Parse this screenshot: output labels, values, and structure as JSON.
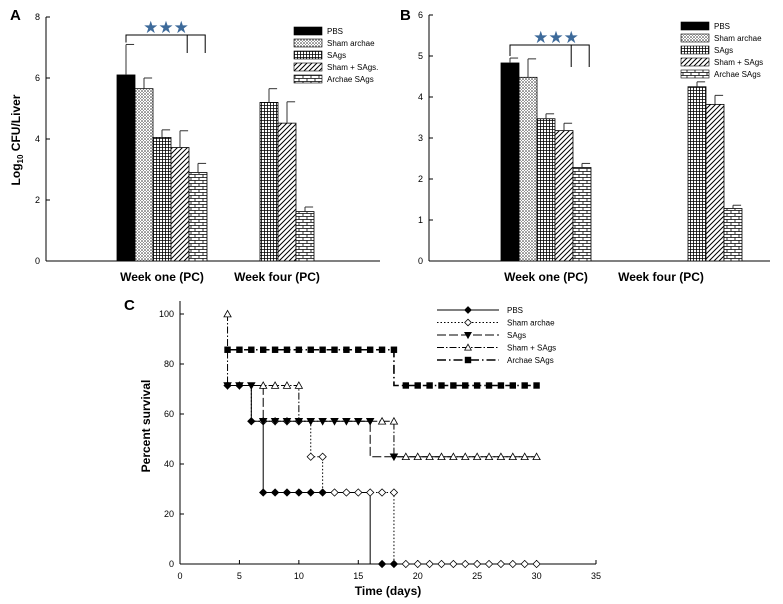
{
  "panels": {
    "a": "A",
    "b": "B",
    "c": "C"
  },
  "bar_y_axis_label": {
    "main": "Log",
    "sub": "10",
    "rest": " CFU/Liver"
  },
  "chart_data": [
    {
      "id": "A",
      "type": "bar",
      "categories": [
        "Week one (PC)",
        "Week four (PC)"
      ],
      "ylim": [
        0,
        8
      ],
      "yticks": [
        0,
        2,
        4,
        6,
        8
      ],
      "legend_position": "top-right",
      "legend_labels": [
        "PBS",
        "Sham archae",
        "SAgs",
        "Sham + SAgs.",
        "Archae SAgs"
      ],
      "annotation": "★★★",
      "series": [
        {
          "name": "PBS",
          "pattern": "solid",
          "values": [
            6.1,
            null
          ],
          "errors": [
            1.0,
            null
          ]
        },
        {
          "name": "Sham archae",
          "pattern": "dots",
          "values": [
            5.65,
            null
          ],
          "errors": [
            0.35,
            null
          ]
        },
        {
          "name": "SAgs",
          "pattern": "grid",
          "values": [
            4.05,
            5.2
          ],
          "errors": [
            0.25,
            0.45
          ]
        },
        {
          "name": "Sham + SAgs.",
          "pattern": "diag",
          "values": [
            3.72,
            4.52
          ],
          "errors": [
            0.55,
            0.7
          ]
        },
        {
          "name": "Archae SAgs",
          "pattern": "brick",
          "values": [
            2.9,
            1.62
          ],
          "errors": [
            0.3,
            0.15
          ]
        }
      ]
    },
    {
      "id": "B",
      "type": "bar",
      "categories": [
        "Week one (PC)",
        "Week four (PC)"
      ],
      "ylim": [
        0,
        6
      ],
      "yticks": [
        0,
        1,
        2,
        3,
        4,
        5,
        6
      ],
      "legend_position": "top-right",
      "legend_labels": [
        "PBS",
        "Sham archae",
        "SAgs",
        "Sham + SAgs",
        "Archae SAgs"
      ],
      "annotation": "★★★",
      "series": [
        {
          "name": "PBS",
          "pattern": "solid",
          "values": [
            4.83,
            null
          ],
          "errors": [
            0.12,
            null
          ]
        },
        {
          "name": "Sham archae",
          "pattern": "dots",
          "values": [
            4.48,
            null
          ],
          "errors": [
            0.45,
            null
          ]
        },
        {
          "name": "SAgs",
          "pattern": "grid",
          "values": [
            3.47,
            4.25
          ],
          "errors": [
            0.12,
            0.12
          ]
        },
        {
          "name": "Sham + SAgs",
          "pattern": "diag",
          "values": [
            3.18,
            3.82
          ],
          "errors": [
            0.18,
            0.22
          ]
        },
        {
          "name": "Archae SAgs",
          "pattern": "brick",
          "values": [
            2.28,
            1.28
          ],
          "errors": [
            0.1,
            0.08
          ]
        }
      ]
    },
    {
      "id": "C",
      "type": "line",
      "title": "",
      "xlabel": "Time (days)",
      "ylabel": "Percent survival",
      "xlim": [
        0,
        35
      ],
      "ylim": [
        0,
        100
      ],
      "xticks": [
        0,
        5,
        10,
        15,
        20,
        25,
        30,
        35
      ],
      "yticks": [
        0,
        20,
        40,
        60,
        80,
        100
      ],
      "legend_position": "top-right",
      "series": [
        {
          "name": "PBS",
          "marker": "diamond-filled",
          "dash": "solid",
          "steps": [
            [
              4,
              71.4
            ],
            [
              6,
              57.1
            ],
            [
              7,
              28.6
            ],
            [
              16,
              0
            ],
            [
              30,
              0
            ]
          ],
          "points": [
            [
              4,
              71.4
            ],
            [
              5,
              71.4
            ],
            [
              6,
              57.1
            ],
            [
              7,
              28.6
            ],
            [
              8,
              28.6
            ],
            [
              9,
              28.6
            ],
            [
              10,
              28.6
            ],
            [
              11,
              28.6
            ],
            [
              12,
              28.6
            ],
            [
              17,
              0
            ],
            [
              18,
              0
            ]
          ]
        },
        {
          "name": "Sham archae",
          "marker": "diamond-open",
          "dash": "dotted",
          "steps": [
            [
              4,
              71.4
            ],
            [
              6,
              57.1
            ],
            [
              11,
              42.9
            ],
            [
              12,
              28.6
            ],
            [
              18,
              0
            ],
            [
              30,
              0
            ]
          ],
          "points": [
            [
              7,
              57.1
            ],
            [
              8,
              57.1
            ],
            [
              9,
              57.1
            ],
            [
              10,
              57.1
            ],
            [
              11,
              42.9
            ],
            [
              12,
              42.9
            ],
            [
              13,
              28.6
            ],
            [
              14,
              28.6
            ],
            [
              15,
              28.6
            ],
            [
              16,
              28.6
            ],
            [
              17,
              28.6
            ],
            [
              18,
              28.6
            ],
            [
              19,
              0
            ],
            [
              20,
              0
            ],
            [
              21,
              0
            ],
            [
              22,
              0
            ],
            [
              23,
              0
            ],
            [
              24,
              0
            ],
            [
              25,
              0
            ],
            [
              26,
              0
            ],
            [
              27,
              0
            ],
            [
              28,
              0
            ],
            [
              29,
              0
            ],
            [
              30,
              0
            ]
          ]
        },
        {
          "name": "SAgs",
          "marker": "triangle-down-filled",
          "dash": "longdash",
          "steps": [
            [
              4,
              71.4
            ],
            [
              7,
              57.1
            ],
            [
              16,
              42.9
            ],
            [
              30,
              42.9
            ]
          ],
          "points": [
            [
              4,
              71.4
            ],
            [
              5,
              71.4
            ],
            [
              6,
              71.4
            ],
            [
              7,
              57.1
            ],
            [
              8,
              57.1
            ],
            [
              9,
              57.1
            ],
            [
              10,
              57.1
            ],
            [
              11,
              57.1
            ],
            [
              12,
              57.1
            ],
            [
              13,
              57.1
            ],
            [
              14,
              57.1
            ],
            [
              15,
              57.1
            ],
            [
              16,
              57.1
            ],
            [
              18,
              42.9
            ]
          ]
        },
        {
          "name": "Sham + SAgs",
          "marker": "triangle-up-open",
          "dash": "dashdot",
          "steps": [
            [
              4,
              100
            ],
            [
              4,
              71.4
            ],
            [
              10,
              57.1
            ],
            [
              18,
              42.9
            ],
            [
              30,
              42.9
            ]
          ],
          "points": [
            [
              4,
              100
            ],
            [
              7,
              71.4
            ],
            [
              8,
              71.4
            ],
            [
              9,
              71.4
            ],
            [
              10,
              71.4
            ],
            [
              17,
              57.1
            ],
            [
              18,
              57.1
            ],
            [
              19,
              42.9
            ],
            [
              20,
              42.9
            ],
            [
              21,
              42.9
            ],
            [
              22,
              42.9
            ],
            [
              23,
              42.9
            ],
            [
              24,
              42.9
            ],
            [
              25,
              42.9
            ],
            [
              26,
              42.9
            ],
            [
              27,
              42.9
            ],
            [
              28,
              42.9
            ],
            [
              29,
              42.9
            ],
            [
              30,
              42.9
            ]
          ]
        },
        {
          "name": "Archae SAgs",
          "marker": "square-filled",
          "dash": "dashdotdot",
          "steps": [
            [
              4,
              85.7
            ],
            [
              18,
              71.4
            ],
            [
              30,
              71.4
            ]
          ],
          "points": [
            [
              4,
              85.7
            ],
            [
              5,
              85.7
            ],
            [
              6,
              85.7
            ],
            [
              7,
              85.7
            ],
            [
              8,
              85.7
            ],
            [
              9,
              85.7
            ],
            [
              10,
              85.7
            ],
            [
              11,
              85.7
            ],
            [
              12,
              85.7
            ],
            [
              13,
              85.7
            ],
            [
              14,
              85.7
            ],
            [
              15,
              85.7
            ],
            [
              16,
              85.7
            ],
            [
              17,
              85.7
            ],
            [
              18,
              85.7
            ],
            [
              19,
              71.4
            ],
            [
              20,
              71.4
            ],
            [
              21,
              71.4
            ],
            [
              22,
              71.4
            ],
            [
              23,
              71.4
            ],
            [
              24,
              71.4
            ],
            [
              25,
              71.4
            ],
            [
              26,
              71.4
            ],
            [
              27,
              71.4
            ],
            [
              28,
              71.4
            ],
            [
              29,
              71.4
            ],
            [
              30,
              71.4
            ]
          ]
        }
      ]
    }
  ]
}
